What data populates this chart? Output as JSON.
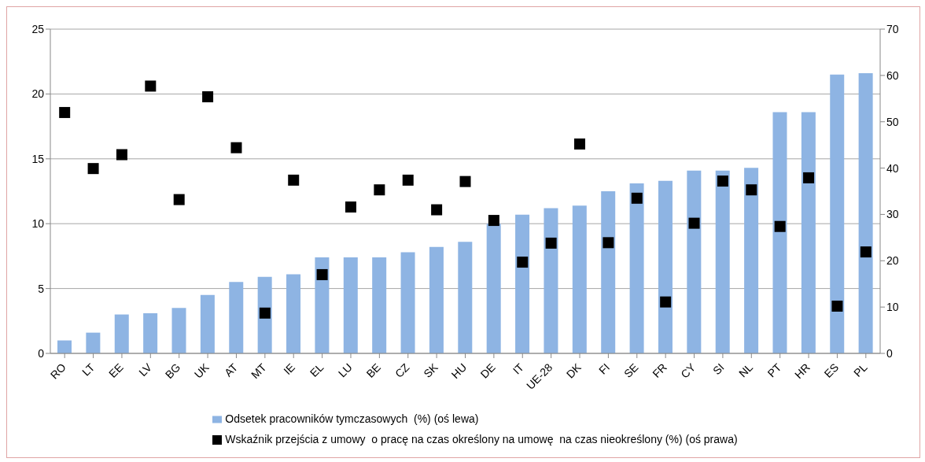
{
  "chart_data": {
    "type": "bar",
    "categories": [
      "RO",
      "LT",
      "EE",
      "LV",
      "BG",
      "UK",
      "AT",
      "MT",
      "IE",
      "EL",
      "LU",
      "BE",
      "CZ",
      "SK",
      "HU",
      "DE",
      "IT",
      "UE-28",
      "DK",
      "FI",
      "SE",
      "FR",
      "CY",
      "SI",
      "NL",
      "PT",
      "HR",
      "ES",
      "PL"
    ],
    "series": [
      {
        "name": "Odsetek pracowników tymczasowych  (%) (oś lewa)",
        "color": "#8eb4e3",
        "values": [
          1.0,
          1.6,
          3.0,
          3.1,
          3.5,
          4.5,
          5.5,
          5.9,
          6.1,
          7.4,
          7.4,
          7.4,
          7.8,
          8.2,
          8.6,
          10.0,
          10.7,
          11.2,
          11.4,
          12.5,
          13.1,
          13.3,
          14.1,
          14.1,
          14.3,
          18.6,
          18.6,
          21.5,
          21.6
        ]
      },
      {
        "name": "Wskaźnik przejścia z umowy  o pracę na czas określony na umowę  na czas nieokreślony (%) (oś prawa)",
        "type": "scatter",
        "axis": "y2",
        "color": "#000000",
        "values": [
          52.0,
          39.9,
          42.9,
          57.7,
          33.2,
          55.4,
          44.4,
          8.7,
          37.4,
          17.0,
          31.6,
          35.3,
          37.4,
          31.0,
          37.1,
          28.7,
          19.7,
          23.8,
          45.2,
          23.9,
          33.5,
          11.1,
          28.1,
          37.2,
          35.3,
          27.4,
          37.9,
          10.2,
          21.9
        ]
      }
    ],
    "ylim": [
      0,
      25
    ],
    "yticks": [
      0,
      5,
      10,
      15,
      20,
      25
    ],
    "y2lim": [
      0,
      70
    ],
    "y2ticks": [
      0,
      10,
      20,
      30,
      40,
      50,
      60,
      70
    ],
    "grid": "y",
    "legend": "bottom",
    "marker": "square"
  }
}
